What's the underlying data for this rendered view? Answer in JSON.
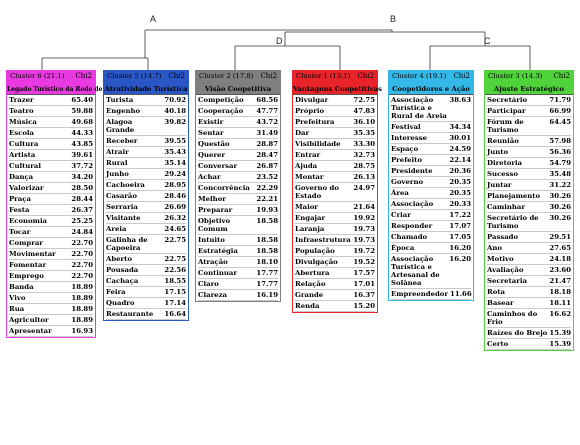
{
  "tree": {
    "labels": {
      "A": "A",
      "B": "B",
      "D": "D",
      "C": "C"
    }
  },
  "clusters": [
    {
      "name": "Cluster 6 (21.1)",
      "chi": "Chi2",
      "theme": "Legado Turístico da Rede de Cooperação",
      "color": "#e83ae0",
      "words": [
        [
          "Trazer",
          "65.40"
        ],
        [
          "Teatro",
          "59.88"
        ],
        [
          "Música",
          "49.68"
        ],
        [
          "Escola",
          "44.33"
        ],
        [
          "Cultura",
          "43.85"
        ],
        [
          "Artista",
          "39.61"
        ],
        [
          "Cultural",
          "37.72"
        ],
        [
          "Dança",
          "34.20"
        ],
        [
          "Valorizar",
          "28.50"
        ],
        [
          "Praça",
          "28.44"
        ],
        [
          "Festa",
          "26.37"
        ],
        [
          "Economia",
          "25.25"
        ],
        [
          "Tocar",
          "24.84"
        ],
        [
          "Comprar",
          "22.70"
        ],
        [
          "Movimentar",
          "22.70"
        ],
        [
          "Fomentar",
          "22.70"
        ],
        [
          "Emprego",
          "22.70"
        ],
        [
          "Banda",
          "18.89"
        ],
        [
          "Vivo",
          "18.89"
        ],
        [
          "Rua",
          "18.89"
        ],
        [
          "Agricultor",
          "18.89"
        ],
        [
          "Apresentar",
          "16.93"
        ]
      ]
    },
    {
      "name": "Cluster 5 (14.7)",
      "chi": "Chi2",
      "theme": "Atratividade Turística",
      "color": "#2a56c6",
      "words": [
        [
          "Turista",
          "70.92"
        ],
        [
          "Engenho",
          "40.18"
        ],
        [
          "Alagoa Grande",
          "39.82"
        ],
        [
          "Receber",
          "39.55"
        ],
        [
          "Atrair",
          "35.43"
        ],
        [
          "Rural",
          "35.14"
        ],
        [
          "Junho",
          "29.24"
        ],
        [
          "Cachoeira",
          "28.95"
        ],
        [
          "Casarão",
          "28.46"
        ],
        [
          "Serraria",
          "26.69"
        ],
        [
          "Visitante",
          "26.32"
        ],
        [
          "Areia",
          "24.65"
        ],
        [
          "Galinha de Capoeira",
          "22.75"
        ],
        [
          "Aberto",
          "22.75"
        ],
        [
          "Pousada",
          "22.56"
        ],
        [
          "Cachaça",
          "18.55"
        ],
        [
          "Feira",
          "17.15"
        ],
        [
          "Quadro",
          "17.14"
        ],
        [
          "Restaurante",
          "16.64"
        ]
      ]
    },
    {
      "name": "Cluster 2 (17.8)",
      "chi": "Chi2",
      "theme": "Visão Coopetitiva",
      "color": "#7f7f7f",
      "words": [
        [
          "Competição",
          "68.56"
        ],
        [
          "Cooperação",
          "47.77"
        ],
        [
          "Existir",
          "43.72"
        ],
        [
          "Sentar",
          "31.49"
        ],
        [
          "Questão",
          "28.87"
        ],
        [
          "Querer",
          "28.47"
        ],
        [
          "Conversar",
          "26.87"
        ],
        [
          "Achar",
          "23.52"
        ],
        [
          "Concorrência",
          "22.29"
        ],
        [
          "Melhor",
          "22.21"
        ],
        [
          "Preparar",
          "19.93"
        ],
        [
          "Objetivo Comum",
          "18.58"
        ],
        [
          "Intuito",
          "18.58"
        ],
        [
          "Estratégia",
          "18.58"
        ],
        [
          "Atração",
          "18.10"
        ],
        [
          "Continuar",
          "17.77"
        ],
        [
          "Claro",
          "17.77"
        ],
        [
          "Clareza",
          "16.19"
        ]
      ]
    },
    {
      "name": "Cluster 1 (13.1)",
      "chi": "Chi2",
      "theme": "Vantagens Coopetitivas",
      "color": "#e8232a",
      "words": [
        [
          "Divulgar",
          "72.75"
        ],
        [
          "Próprio",
          "47.83"
        ],
        [
          "Prefeitura",
          "36.10"
        ],
        [
          "Dar",
          "35.35"
        ],
        [
          "Visibilidade",
          "33.30"
        ],
        [
          "Entrar",
          "32.73"
        ],
        [
          "Ajuda",
          "28.75"
        ],
        [
          "Montar",
          "26.13"
        ],
        [
          "Governo do Estado",
          "24.97"
        ],
        [
          "Maior",
          "21.64"
        ],
        [
          "Engajar",
          "19.92"
        ],
        [
          "Laranja",
          "19.73"
        ],
        [
          "Infraestrutura",
          "19.73"
        ],
        [
          "População",
          "19.72"
        ],
        [
          "Divulgação",
          "19.52"
        ],
        [
          "Abertura",
          "17.57"
        ],
        [
          "Relação",
          "17.01"
        ],
        [
          "Grande",
          "16.37"
        ],
        [
          "Renda",
          "15.20"
        ]
      ]
    },
    {
      "name": "Cluster 4 (19.1)",
      "chi": "Chi2",
      "theme": "Coopetidores e Ação",
      "color": "#33b8e8",
      "words": [
        [
          "Associação Turística e Rural de Areia",
          "38.63"
        ],
        [
          "Festival",
          "34.34"
        ],
        [
          "Interesse",
          "30.01"
        ],
        [
          "Espaço",
          "24.59"
        ],
        [
          "Prefeito",
          "22.14"
        ],
        [
          "Presidente",
          "20.36"
        ],
        [
          "Governo",
          "20.35"
        ],
        [
          "Área",
          "20.35"
        ],
        [
          "Associação",
          "20.33"
        ],
        [
          "Criar",
          "17.22"
        ],
        [
          "Responder",
          "17.07"
        ],
        [
          "Chamado",
          "17.05"
        ],
        [
          "Época",
          "16.20"
        ],
        [
          "Associação Turística e Artesanal de Solânea",
          "16.20"
        ],
        [
          "Empreendedor",
          "11.66"
        ]
      ]
    },
    {
      "name": "Cluster 3 (14.3)",
      "chi": "Chi2",
      "theme": "Ajuste Estratégico",
      "color": "#4fd23a",
      "words": [
        [
          "Secretário",
          "71.79"
        ],
        [
          "Participar",
          "66.99"
        ],
        [
          "Fórum de Turismo",
          "64.45"
        ],
        [
          "Reunião",
          "57.98"
        ],
        [
          "Junto",
          "56.36"
        ],
        [
          "Diretoria",
          "54.79"
        ],
        [
          "Sucesso",
          "35.48"
        ],
        [
          "Juntar",
          "31.22"
        ],
        [
          "Planejamento",
          "30.26"
        ],
        [
          "Caminhar",
          "30.26"
        ],
        [
          "Secretário de Turismo",
          "30.26"
        ],
        [
          "Passado",
          "29.51"
        ],
        [
          "Ano",
          "27.65"
        ],
        [
          "Motivo",
          "24.18"
        ],
        [
          "Avaliação",
          "23.60"
        ],
        [
          "Secretaria",
          "21.47"
        ],
        [
          "Rota",
          "18.18"
        ],
        [
          "Basear",
          "18.11"
        ],
        [
          "Caminhos do Frio",
          "16.62"
        ],
        [
          "Raízes do Brejo",
          "15.39"
        ],
        [
          "Certo",
          "15.39"
        ]
      ]
    }
  ]
}
